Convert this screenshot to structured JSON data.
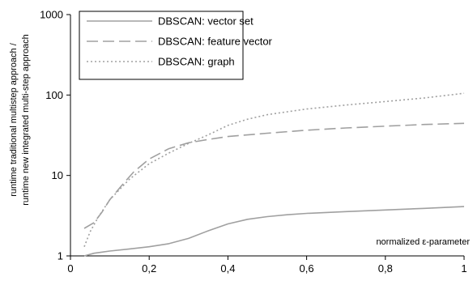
{
  "chart_data": {
    "type": "line",
    "title": "",
    "xlabel": "normalized ε-parameter",
    "ylabel_lines": [
      "runtime traditional multistep approach /",
      "runtime new integrated multi-step approach"
    ],
    "x_range": [
      0,
      1
    ],
    "y_range": [
      1,
      1000
    ],
    "y_scale": "log",
    "grid": false,
    "legend_position": "top-left",
    "x_ticks": [
      {
        "value": 0,
        "label": "0"
      },
      {
        "value": 0.2,
        "label": "0,2"
      },
      {
        "value": 0.4,
        "label": "0,4"
      },
      {
        "value": 0.6,
        "label": "0,6"
      },
      {
        "value": 0.8,
        "label": "0,8"
      },
      {
        "value": 1,
        "label": "1"
      }
    ],
    "y_ticks": [
      {
        "value": 1,
        "label": "1"
      },
      {
        "value": 10,
        "label": "10"
      },
      {
        "value": 100,
        "label": "100"
      },
      {
        "value": 1000,
        "label": "1000"
      }
    ],
    "series": [
      {
        "name": "DBSCAN: vector set",
        "color": "#a0a0a0",
        "dash": "solid",
        "points": [
          [
            0.035,
            1.0
          ],
          [
            0.06,
            1.08
          ],
          [
            0.1,
            1.15
          ],
          [
            0.15,
            1.22
          ],
          [
            0.2,
            1.3
          ],
          [
            0.25,
            1.42
          ],
          [
            0.3,
            1.65
          ],
          [
            0.35,
            2.05
          ],
          [
            0.4,
            2.5
          ],
          [
            0.45,
            2.85
          ],
          [
            0.5,
            3.08
          ],
          [
            0.55,
            3.25
          ],
          [
            0.6,
            3.38
          ],
          [
            0.7,
            3.55
          ],
          [
            0.8,
            3.72
          ],
          [
            0.9,
            3.9
          ],
          [
            1.0,
            4.1
          ]
        ]
      },
      {
        "name": "DBSCAN: feature vector",
        "color": "#a0a0a0",
        "dash": "long",
        "points": [
          [
            0.035,
            2.2
          ],
          [
            0.06,
            2.6
          ],
          [
            0.08,
            3.5
          ],
          [
            0.1,
            5.0
          ],
          [
            0.13,
            7.5
          ],
          [
            0.16,
            11.0
          ],
          [
            0.2,
            16.0
          ],
          [
            0.25,
            21.5
          ],
          [
            0.3,
            25.5
          ],
          [
            0.35,
            28.0
          ],
          [
            0.4,
            30.5
          ],
          [
            0.5,
            33.5
          ],
          [
            0.6,
            36.5
          ],
          [
            0.7,
            39.0
          ],
          [
            0.8,
            41.0
          ],
          [
            0.9,
            43.0
          ],
          [
            1.0,
            44.5
          ]
        ]
      },
      {
        "name": "DBSCAN: graph",
        "color": "#a0a0a0",
        "dash": "dotted",
        "points": [
          [
            0.035,
            1.3
          ],
          [
            0.05,
            2.0
          ],
          [
            0.07,
            3.0
          ],
          [
            0.1,
            5.0
          ],
          [
            0.15,
            9.0
          ],
          [
            0.2,
            14.0
          ],
          [
            0.25,
            19.0
          ],
          [
            0.3,
            25.0
          ],
          [
            0.35,
            32.0
          ],
          [
            0.4,
            42.0
          ],
          [
            0.45,
            50.0
          ],
          [
            0.5,
            57.0
          ],
          [
            0.6,
            67.0
          ],
          [
            0.7,
            75.0
          ],
          [
            0.8,
            83.0
          ],
          [
            0.9,
            92.0
          ],
          [
            1.0,
            105.0
          ]
        ]
      }
    ]
  }
}
